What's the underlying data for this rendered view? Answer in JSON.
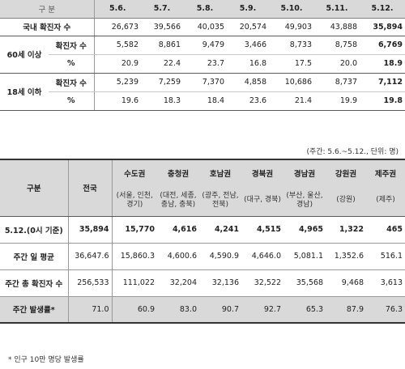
{
  "table1": {
    "gubun": "구 분",
    "dates": [
      "5.6.",
      "5.7.",
      "5.8.",
      "5.9.",
      "5.10.",
      "5.11.",
      "5.12."
    ],
    "national": {
      "label": "국내 확진자 수",
      "values": [
        "26,673",
        "39,566",
        "40,035",
        "20,574",
        "49,903",
        "43,888",
        "35,894"
      ]
    },
    "over60": {
      "label": "60세 이상",
      "count_label": "확진자 수",
      "count": [
        "5,582",
        "8,861",
        "9,479",
        "3,466",
        "8,733",
        "8,758",
        "6,769"
      ],
      "pct_label": "%",
      "pct": [
        "20.9",
        "22.4",
        "23.7",
        "16.8",
        "17.5",
        "20.0",
        "18.9"
      ]
    },
    "under18": {
      "label": "18세 이하",
      "count_label": "확진자 수",
      "count": [
        "5,239",
        "7,259",
        "7,370",
        "4,858",
        "10,686",
        "8,737",
        "7,112"
      ],
      "pct_label": "%",
      "pct": [
        "19.6",
        "18.3",
        "18.4",
        "23.6",
        "21.4",
        "19.9",
        "19.8"
      ]
    }
  },
  "note": "(주간: 5.6.~5.12., 단위: 명)",
  "table2": {
    "gubun": "구분",
    "national": "전국",
    "regions": [
      {
        "name": "수도권",
        "sub": "(서울, 인천, 경기)"
      },
      {
        "name": "충청권",
        "sub": "(대전, 세종, 충남, 충북)"
      },
      {
        "name": "호남권",
        "sub": "(광주, 전남, 전북)"
      },
      {
        "name": "경북권",
        "sub": "(대구, 경북)"
      },
      {
        "name": "경남권",
        "sub": "(부산, 울산, 경남)"
      },
      {
        "name": "강원권",
        "sub": "(강원)"
      },
      {
        "name": "제주권",
        "sub": "(제주)"
      }
    ],
    "rows": [
      {
        "label": "5.12.(0시 기준)",
        "values": [
          "35,894",
          "15,770",
          "4,616",
          "4,241",
          "4,515",
          "4,965",
          "1,322",
          "465"
        ]
      },
      {
        "label": "주간 일 평균",
        "values": [
          "36,647.6",
          "15,860.3",
          "4,600.6",
          "4,590.9",
          "4,646.0",
          "5,081.1",
          "1,352.6",
          "516.1"
        ]
      },
      {
        "label": "주간 총 확진자 수",
        "values": [
          "256,533",
          "111,022",
          "32,204",
          "32,136",
          "32,522",
          "35,568",
          "9,468",
          "3,613"
        ]
      },
      {
        "label": "주간 발생률*",
        "values": [
          "71.0",
          "60.9",
          "83.0",
          "90.7",
          "92.7",
          "65.3",
          "87.9",
          "76.3"
        ]
      }
    ]
  },
  "footnote": "* 인구 10만 명당 발생률"
}
